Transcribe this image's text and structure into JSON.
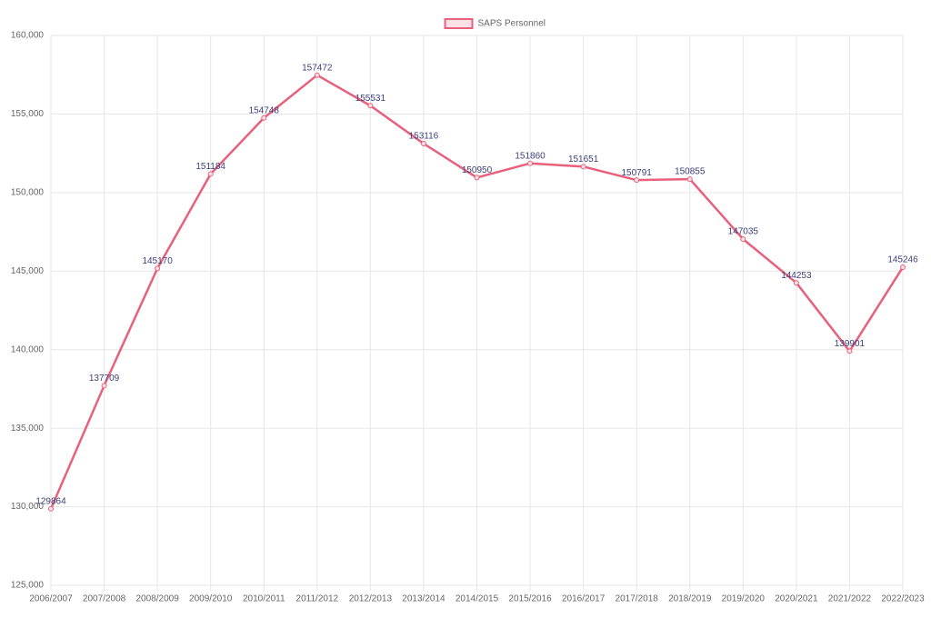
{
  "chart_data": {
    "type": "line",
    "categories": [
      "2006/2007",
      "2007/2008",
      "2008/2009",
      "2009/2010",
      "2010/2011",
      "2011/2012",
      "2012/2013",
      "2013/2014",
      "2014/2015",
      "2015/2016",
      "2016/2017",
      "2017/2018",
      "2018/2019",
      "2019/2020",
      "2020/2021",
      "2021/2022",
      "2022/2023"
    ],
    "series": [
      {
        "name": "SAPS Personnel",
        "color": "#e8607c",
        "values": [
          129864,
          137709,
          145170,
          151184,
          154748,
          157472,
          155531,
          153116,
          150950,
          151860,
          151651,
          150791,
          150855,
          147035,
          144253,
          139901,
          145246
        ]
      }
    ],
    "ylim": [
      125000,
      160000
    ],
    "yticks": [
      {
        "value": 125000,
        "label": "125,000"
      },
      {
        "value": 130000,
        "label": "130,000"
      },
      {
        "value": 135000,
        "label": "135,000"
      },
      {
        "value": 140000,
        "label": "140,000"
      },
      {
        "value": 145000,
        "label": "145,000"
      },
      {
        "value": 150000,
        "label": "150,000"
      },
      {
        "value": 155000,
        "label": "155,000"
      },
      {
        "value": 160000,
        "label": "160,000"
      }
    ],
    "grid": true,
    "legend": "top",
    "data_labels": true
  }
}
